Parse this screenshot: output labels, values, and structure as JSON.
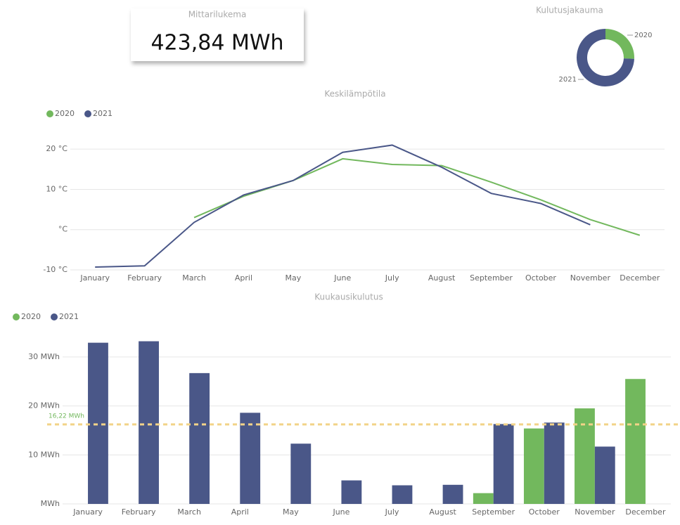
{
  "card": {
    "title": "Mittarilukema",
    "value": "423,84 MWh"
  },
  "chart_data": [
    {
      "type": "donut",
      "title": "Kulutusjakauma",
      "categories": [
        "2020",
        "2021"
      ],
      "values": [
        62.6,
        181.2
      ],
      "colors": [
        "#72b85d",
        "#4a5788"
      ]
    },
    {
      "type": "line",
      "title": "Keskilämpötila",
      "legend": "top-left",
      "grid": true,
      "categories": [
        "January",
        "February",
        "March",
        "April",
        "May",
        "June",
        "July",
        "August",
        "September",
        "October",
        "November",
        "December"
      ],
      "series": [
        {
          "name": "2020",
          "color": "#72b85d",
          "values": [
            null,
            null,
            3.0,
            8.3,
            12.2,
            17.6,
            16.2,
            15.9,
            11.8,
            7.4,
            2.5,
            -1.4
          ]
        },
        {
          "name": "2021",
          "color": "#4a5788",
          "values": [
            -9.3,
            -9.0,
            1.8,
            8.6,
            12.2,
            19.2,
            21.0,
            15.5,
            9.0,
            6.5,
            1.2,
            null
          ]
        }
      ],
      "ylim": [
        -10,
        23
      ],
      "yticks": [
        {
          "value": -10,
          "label": "-10 °C"
        },
        {
          "value": 0,
          "label": "°C"
        },
        {
          "value": 10,
          "label": "10 °C"
        },
        {
          "value": 20,
          "label": "20 °C"
        }
      ]
    },
    {
      "type": "bar",
      "title": "Kuukausikulutus",
      "legend": "top-left",
      "grid": true,
      "categories": [
        "January",
        "February",
        "March",
        "April",
        "May",
        "June",
        "July",
        "August",
        "September",
        "October",
        "November",
        "December"
      ],
      "series": [
        {
          "name": "2020",
          "color": "#72b85d",
          "values": [
            null,
            null,
            null,
            null,
            null,
            null,
            null,
            null,
            2.2,
            15.4,
            19.5,
            25.5
          ]
        },
        {
          "name": "2021",
          "color": "#4a5788",
          "values": [
            32.9,
            33.2,
            26.7,
            18.6,
            12.3,
            4.8,
            3.8,
            3.9,
            16.3,
            16.6,
            11.7,
            null
          ]
        }
      ],
      "ylim": [
        0,
        35
      ],
      "yticks": [
        {
          "value": 0,
          "label": "MWh"
        },
        {
          "value": 10,
          "label": "10 MWh"
        },
        {
          "value": 20,
          "label": "20 MWh"
        },
        {
          "value": 30,
          "label": "30 MWh"
        }
      ],
      "reference_line": {
        "value": 16.22,
        "label": "16,22 MWh",
        "color": "#f2d388"
      }
    }
  ]
}
